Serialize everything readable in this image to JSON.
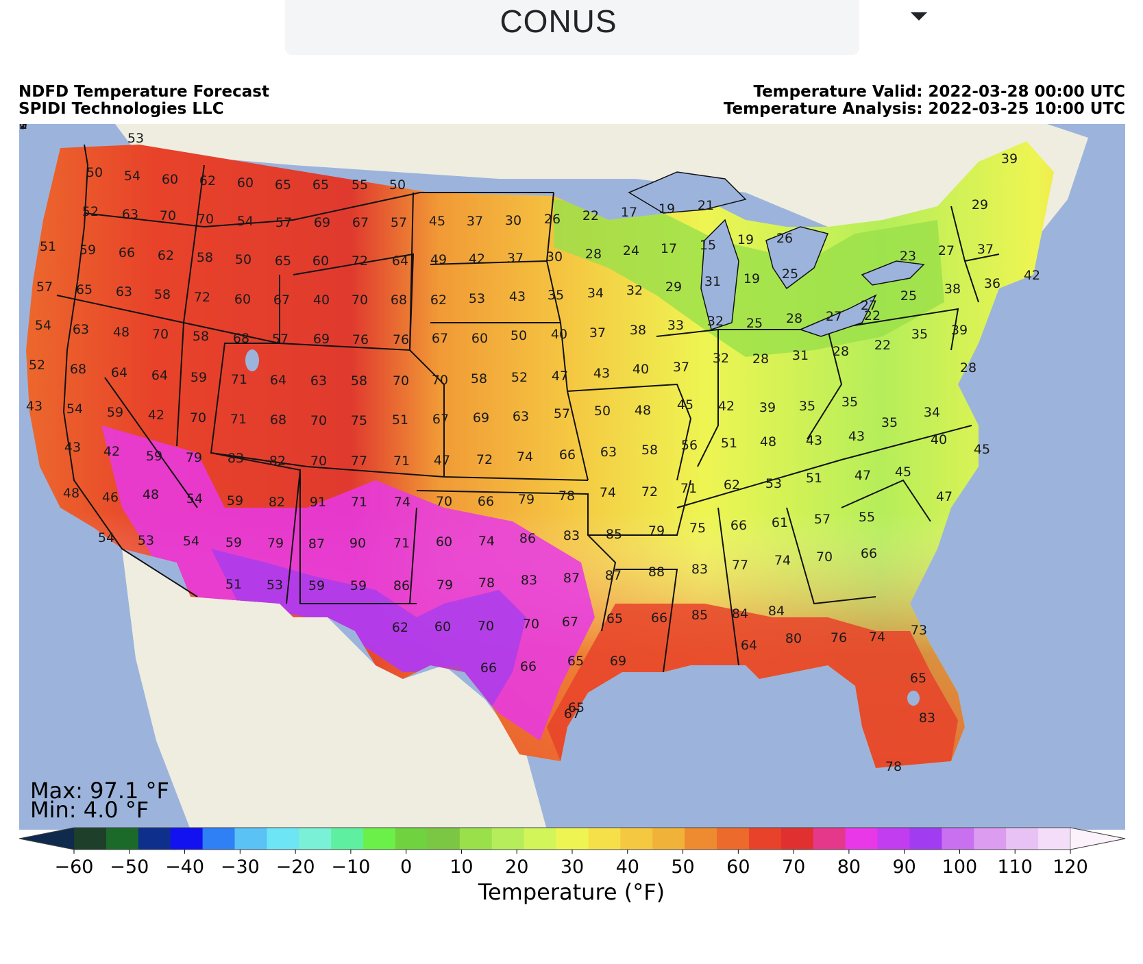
{
  "dropdown": {
    "selected": "CONUS"
  },
  "header": {
    "product_title": "NDFD Temperature Forecast",
    "provider": "SPIDI Technologies LLC",
    "valid_time": "Temperature Valid: 2022-03-28 00:00 UTC",
    "analysis_time": "Temperature Analysis: 2022-03-25 10:00 UTC"
  },
  "stats": {
    "max": "Max: 97.1 °F",
    "min": "Min: 4.0 °F"
  },
  "colorbar": {
    "title": "Temperature (°F)",
    "range": [
      -60,
      120
    ],
    "ticks": [
      "−60",
      "−50",
      "−40",
      "−30",
      "−20",
      "−10",
      "0",
      "10",
      "20",
      "30",
      "40",
      "50",
      "60",
      "70",
      "80",
      "90",
      "100",
      "110",
      "120"
    ],
    "colors": [
      "#0f2a4c",
      "#1e3f2a",
      "#1b6a2a",
      "#0f2f8c",
      "#1212f0",
      "#2f7ff5",
      "#5ac2f5",
      "#6ee5f5",
      "#7af0d7",
      "#5ef0a0",
      "#6bf04a",
      "#6fd23e",
      "#7bc642",
      "#99e04a",
      "#b5ee5a",
      "#d2f55a",
      "#eef552",
      "#f5e04a",
      "#f5c842",
      "#f1b23a",
      "#ee8a30",
      "#ec6a2c",
      "#e8432a",
      "#e03030",
      "#e6388a",
      "#e838e8",
      "#c23cf0",
      "#a23cf0",
      "#c870f0",
      "#dc9cf0",
      "#e9c2f5",
      "#f3ddf8",
      "#fbf2fc"
    ]
  },
  "map_values": [
    "53",
    "50",
    "54",
    "60",
    "62",
    "60",
    "65",
    "65",
    "55",
    "50",
    "52",
    "63",
    "70",
    "70",
    "54",
    "57",
    "69",
    "67",
    "57",
    "45",
    "37",
    "30",
    "26",
    "22",
    "17",
    "19",
    "21",
    "29",
    "39",
    "51",
    "59",
    "66",
    "62",
    "58",
    "50",
    "65",
    "60",
    "72",
    "64",
    "49",
    "42",
    "37",
    "30",
    "28",
    "24",
    "17",
    "15",
    "19",
    "26",
    "25",
    "23",
    "27",
    "37",
    "42",
    "57",
    "65",
    "63",
    "58",
    "72",
    "60",
    "67",
    "40",
    "70",
    "68",
    "62",
    "53",
    "43",
    "35",
    "34",
    "32",
    "29",
    "31",
    "19",
    "27",
    "25",
    "38",
    "36",
    "54",
    "63",
    "48",
    "70",
    "58",
    "68",
    "57",
    "69",
    "76",
    "76",
    "67",
    "60",
    "50",
    "40",
    "37",
    "38",
    "33",
    "32",
    "25",
    "28",
    "27",
    "22",
    "35",
    "39",
    "52",
    "68",
    "64",
    "64",
    "59",
    "71",
    "64",
    "63",
    "58",
    "70",
    "70",
    "58",
    "52",
    "47",
    "43",
    "40",
    "37",
    "32",
    "28",
    "31",
    "28",
    "22",
    "28",
    "43",
    "54",
    "59",
    "42",
    "70",
    "71",
    "68",
    "70",
    "75",
    "51",
    "67",
    "69",
    "63",
    "57",
    "50",
    "48",
    "45",
    "42",
    "39",
    "35",
    "35",
    "35",
    "34",
    "43",
    "42",
    "59",
    "79",
    "83",
    "82",
    "70",
    "77",
    "71",
    "47",
    "72",
    "74",
    "66",
    "63",
    "58",
    "56",
    "51",
    "48",
    "43",
    "43",
    "40",
    "45",
    "48",
    "46",
    "48",
    "54",
    "59",
    "82",
    "91",
    "71",
    "74",
    "70",
    "66",
    "79",
    "78",
    "74",
    "72",
    "71",
    "62",
    "53",
    "51",
    "47",
    "45",
    "47",
    "54",
    "53",
    "54",
    "59",
    "79",
    "87",
    "90",
    "71",
    "60",
    "74",
    "86",
    "83",
    "85",
    "79",
    "75",
    "66",
    "61",
    "57",
    "55",
    "51",
    "53",
    "59",
    "59",
    "86",
    "79",
    "78",
    "83",
    "87",
    "87",
    "88",
    "83",
    "77",
    "74",
    "70",
    "66",
    "62",
    "60",
    "70",
    "70",
    "67",
    "65",
    "66",
    "85",
    "84",
    "84",
    "80",
    "76",
    "74",
    "73",
    "66",
    "66",
    "65",
    "69",
    "67",
    "65",
    "64",
    "65",
    "83",
    "78",
    "72",
    "67",
    "65",
    "75",
    "70",
    "71",
    "73"
  ],
  "colors": {
    "water": "#9cb4dc",
    "land": "#efede0",
    "border": "#111111"
  }
}
